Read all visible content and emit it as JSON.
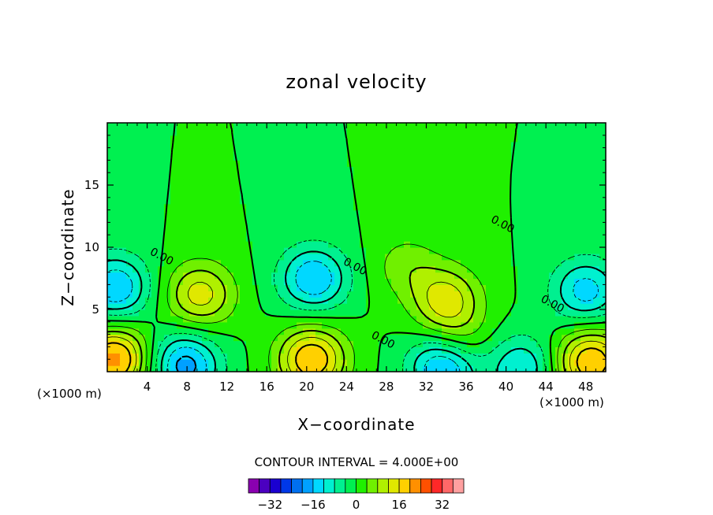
{
  "chart_data": {
    "type": "heatmap",
    "title": "zonal velocity",
    "xlabel": "X−coordinate",
    "ylabel": "Z−coordinate",
    "x_unit_left": "(×1000 m)",
    "x_unit_right": "(×1000 m)",
    "xlim": [
      0,
      50
    ],
    "ylim": [
      0,
      20
    ],
    "x_ticks": [
      4,
      8,
      12,
      16,
      20,
      24,
      28,
      32,
      36,
      40,
      44,
      48
    ],
    "x_tick_labels": [
      "4",
      "8",
      "12",
      "16",
      "20",
      "24",
      "28",
      "32",
      "36",
      "40",
      "44",
      "48"
    ],
    "y_ticks": [
      5,
      10,
      15
    ],
    "y_tick_labels": [
      "5",
      "10",
      "15"
    ],
    "contour_interval_text": "CONTOUR INTERVAL = 4.000E+00",
    "contour_labels": [
      {
        "x": 5.3,
        "y": 9.0,
        "text": "0.00"
      },
      {
        "x": 24.7,
        "y": 8.2,
        "text": "0.00"
      },
      {
        "x": 27.5,
        "y": 2.3,
        "text": "0.00"
      },
      {
        "x": 39.5,
        "y": 11.6,
        "text": "0.00"
      },
      {
        "x": 44.5,
        "y": 5.2,
        "text": "0.00"
      }
    ],
    "features": [
      {
        "x": 0.7,
        "y": 1.0,
        "value": 22
      },
      {
        "x": 9.3,
        "y": 6.2,
        "value": 14
      },
      {
        "x": 7.8,
        "y": 0.5,
        "value": -18
      },
      {
        "x": 20.7,
        "y": 7.5,
        "value": -16
      },
      {
        "x": 20.5,
        "y": 1.0,
        "value": 20
      },
      {
        "x": 34.0,
        "y": 5.8,
        "value": 14
      },
      {
        "x": 33.8,
        "y": 0.5,
        "value": -20
      },
      {
        "x": 41.5,
        "y": 0.3,
        "value": -12
      },
      {
        "x": 48.5,
        "y": 0.8,
        "value": 20
      },
      {
        "x": 48.0,
        "y": 6.5,
        "value": -14
      },
      {
        "x": 0.8,
        "y": 6.8,
        "value": -16
      },
      {
        "x": 30.0,
        "y": 8.5,
        "value": 6
      },
      {
        "x": 35.0,
        "y": 2.2,
        "value": 8
      }
    ],
    "colorbar": {
      "colors": [
        "#8a00b0",
        "#4b00c0",
        "#1a00d0",
        "#0038e8",
        "#0070f0",
        "#00a0ff",
        "#00d8ff",
        "#00f0d0",
        "#00f090",
        "#00f050",
        "#20f000",
        "#70f000",
        "#b0f000",
        "#e0e800",
        "#ffd000",
        "#ff9000",
        "#ff5000",
        "#ff2828",
        "#ff6868",
        "#ffa0a0"
      ],
      "tick_values": [
        -32,
        -16,
        0,
        16,
        32
      ],
      "tick_labels": [
        "−32",
        "−16",
        "0",
        "16",
        "32"
      ],
      "range": [
        -40,
        40
      ]
    }
  }
}
